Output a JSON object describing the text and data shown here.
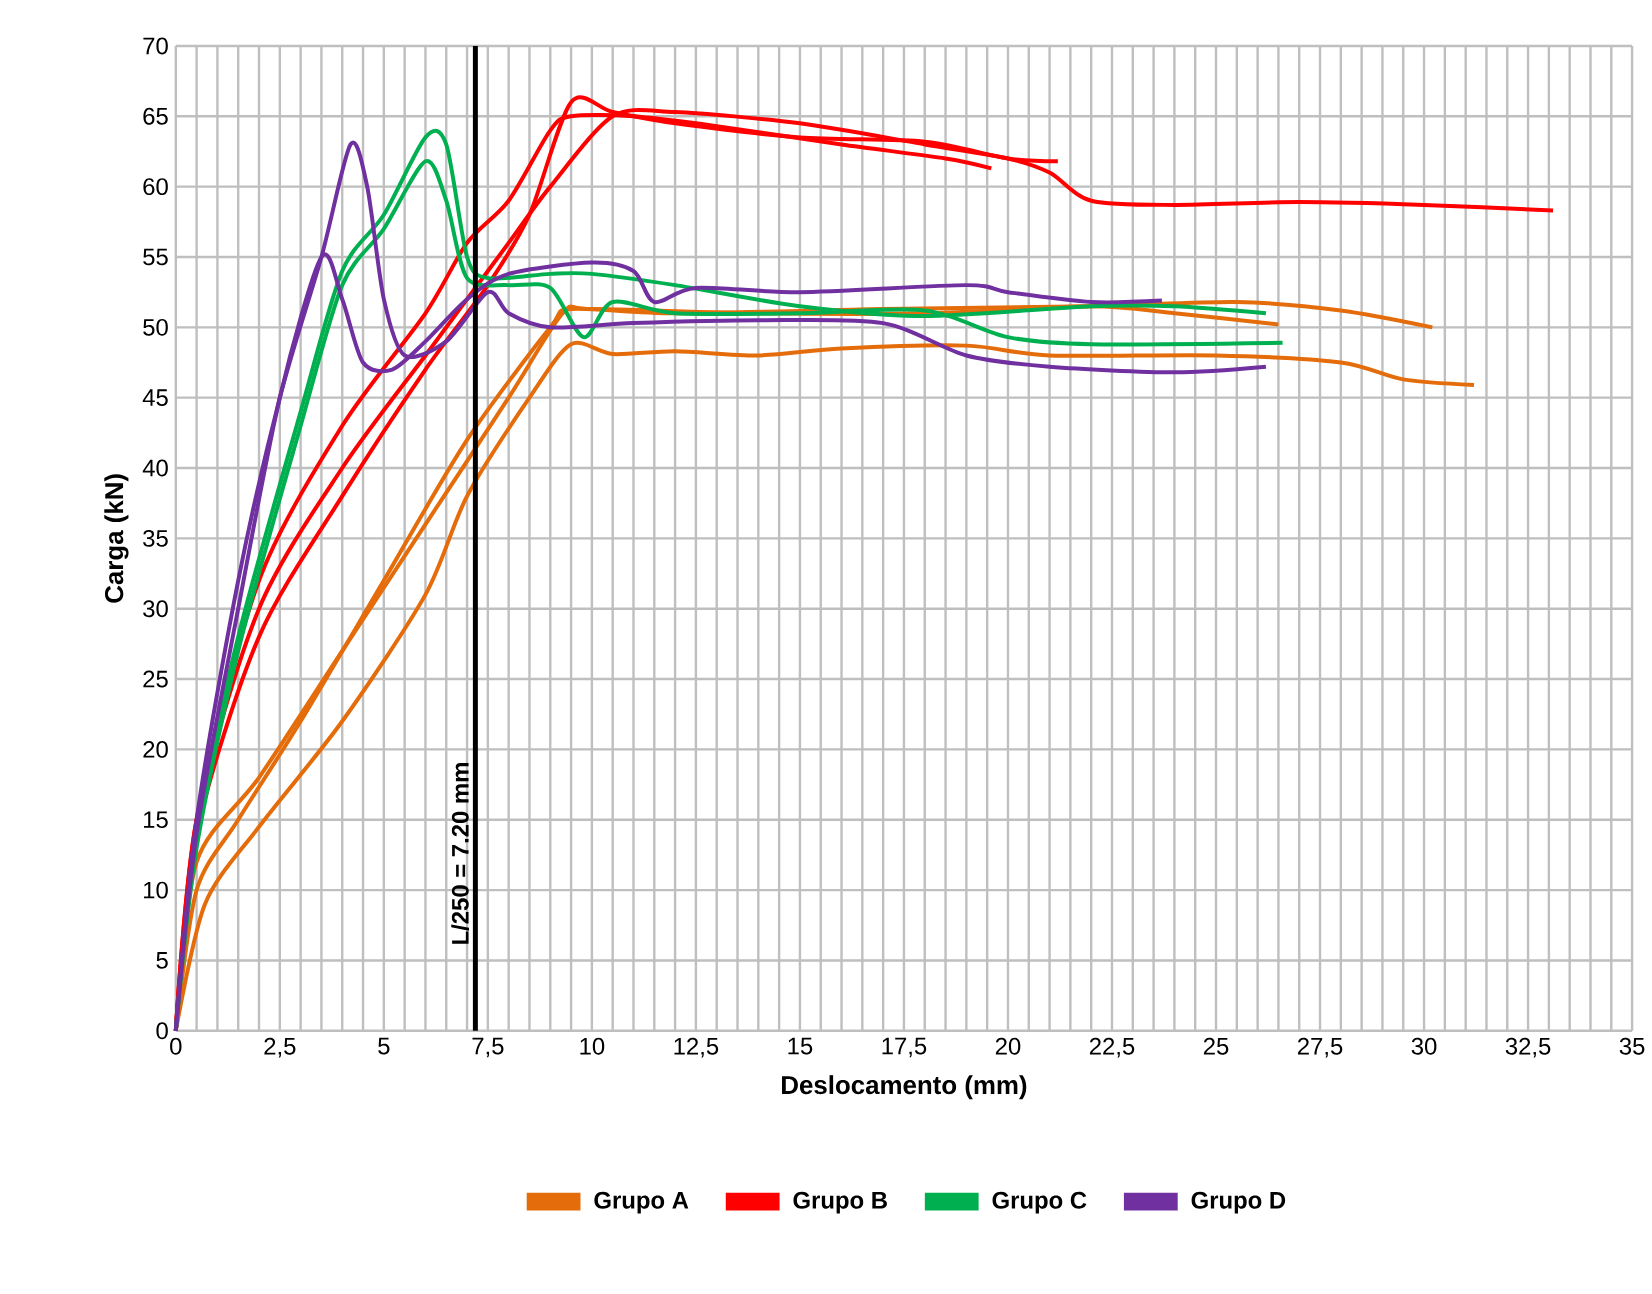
{
  "chart_data": {
    "type": "line",
    "xlabel": "Deslocamento (mm)",
    "ylabel": "Carga (kN)",
    "xlim": [
      0,
      35
    ],
    "ylim": [
      0,
      70
    ],
    "xticks": [
      0,
      {
        "value": 2.5,
        "label": "2,5"
      },
      5,
      {
        "value": 7.5,
        "label": "7,5"
      },
      10,
      {
        "value": 12.5,
        "label": "12,5"
      },
      15,
      {
        "value": 17.5,
        "label": "17,5"
      },
      20,
      {
        "value": 22.5,
        "label": "22,5"
      },
      25,
      {
        "value": 27.5,
        "label": "27,5"
      },
      30,
      {
        "value": 32.5,
        "label": "32,5"
      },
      35
    ],
    "yticks": [
      0,
      5,
      10,
      15,
      20,
      25,
      30,
      35,
      40,
      45,
      50,
      55,
      60,
      65,
      70
    ],
    "grid": true,
    "legend": "bottom",
    "ref_lines": [
      {
        "axis": "x",
        "value": 7.2,
        "label": "L/250 = 7.20 mm",
        "color": "#000000"
      }
    ],
    "series": [
      {
        "name": "Grupo A",
        "color": "#e46c0a",
        "x": [
          0,
          0.5,
          1.5,
          3,
          5,
          7,
          9,
          9.5,
          12,
          17,
          22,
          25.5,
          28,
          30.2
        ],
        "values": [
          0,
          10,
          15,
          22,
          32,
          42,
          50,
          51.3,
          51,
          51.3,
          51.5,
          51.8,
          51.2,
          50
        ]
      },
      {
        "color": "#e46c0a",
        "x": [
          0,
          0.5,
          2,
          4,
          6,
          8,
          9.3,
          10,
          14,
          18,
          22,
          24,
          26.5
        ],
        "values": [
          0,
          12,
          18,
          27,
          36,
          45,
          51,
          51.3,
          51,
          51,
          51.5,
          51,
          50.2
        ]
      },
      {
        "color": "#e46c0a",
        "x": [
          0,
          0.7,
          2,
          4,
          6,
          7,
          8.5,
          9.5,
          10.5,
          12,
          14,
          16,
          19,
          21,
          25,
          28,
          29.5,
          31.2
        ],
        "values": [
          0,
          9,
          14.5,
          22,
          31,
          38,
          45,
          48.8,
          48.1,
          48.3,
          48,
          48.5,
          48.7,
          48,
          48,
          47.5,
          46.3,
          45.9
        ]
      },
      {
        "name": "Grupo B",
        "color": "#ff0000",
        "x": [
          0,
          0.5,
          2,
          4,
          6,
          7,
          8,
          9,
          10.5,
          12,
          15,
          18,
          20,
          21,
          22,
          24,
          27,
          30,
          33.1
        ],
        "values": [
          0,
          15,
          30,
          40,
          48,
          52,
          56,
          60,
          65,
          65.3,
          64.5,
          63,
          62,
          61,
          59,
          58.7,
          58.9,
          58.7,
          58.3
        ]
      },
      {
        "color": "#ff0000",
        "x": [
          0,
          0.5,
          2,
          4,
          6,
          7.5,
          8.5,
          9.5,
          10.5,
          12,
          15,
          18,
          20,
          21.2
        ],
        "values": [
          0,
          14,
          28,
          38,
          47,
          53,
          58,
          66,
          65.3,
          64.5,
          63.5,
          63.2,
          62,
          61.8
        ]
      },
      {
        "color": "#ff0000",
        "x": [
          0,
          0.5,
          2,
          4,
          6,
          7,
          8,
          9,
          9.5,
          11,
          13,
          16,
          18.5,
          19.6
        ],
        "values": [
          0,
          15,
          32,
          43,
          51,
          56,
          59,
          64,
          65,
          65,
          64.3,
          63,
          62,
          61.3
        ]
      },
      {
        "name": "Grupo C",
        "color": "#00b050",
        "x": [
          0,
          0.5,
          1.5,
          3,
          4,
          5,
          6,
          6.5,
          7,
          7.5,
          9,
          10,
          12,
          15,
          18,
          22,
          24,
          26.2
        ],
        "values": [
          0,
          14,
          28,
          44,
          54,
          58,
          63.5,
          63,
          55,
          53.5,
          53.8,
          53.8,
          53,
          51.5,
          50.8,
          51.5,
          51.5,
          51
        ]
      },
      {
        "color": "#00b050",
        "x": [
          0,
          0.5,
          1.5,
          3,
          4,
          5,
          6,
          6.5,
          7,
          8,
          9,
          9.8,
          10.5,
          12,
          15,
          18,
          20,
          22,
          26.6
        ],
        "values": [
          0,
          13,
          27,
          43,
          53,
          57,
          61.8,
          59,
          53.5,
          53,
          52.8,
          49.3,
          51.8,
          51,
          51,
          51.2,
          49.3,
          48.8,
          48.9
        ]
      },
      {
        "name": "Grupo D",
        "color": "#7030a0",
        "x": [
          0,
          0.5,
          1.5,
          2.5,
          3.5,
          4.2,
          4.6,
          5,
          5.5,
          6.5,
          7.5,
          8,
          9,
          11,
          14,
          17,
          19,
          21,
          24,
          26.2
        ],
        "values": [
          0,
          15,
          32,
          45,
          55,
          63,
          60,
          52,
          48,
          49,
          52.5,
          51,
          50,
          50.3,
          50.5,
          50.3,
          48,
          47.2,
          46.8,
          47.2
        ]
      },
      {
        "color": "#7030a0",
        "x": [
          0,
          0.5,
          1.5,
          2.5,
          3.5,
          4,
          4.5,
          5.2,
          6,
          7,
          8,
          10,
          11,
          11.5,
          12.5,
          15,
          19,
          20,
          22,
          23.7
        ],
        "values": [
          0,
          14,
          30,
          45,
          55,
          52,
          47.5,
          47,
          49,
          52,
          53.8,
          54.6,
          54,
          51.8,
          52.8,
          52.5,
          53,
          52.5,
          51.8,
          51.9
        ]
      }
    ]
  }
}
